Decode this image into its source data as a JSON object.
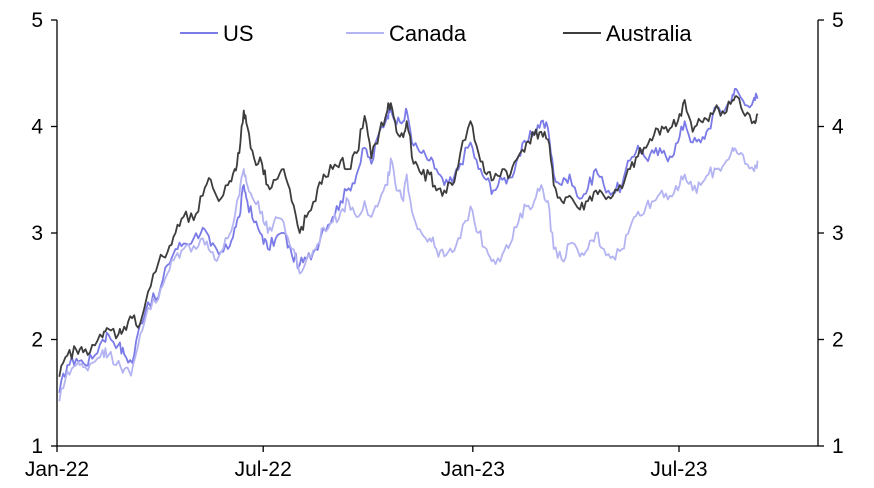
{
  "chart_data": {
    "type": "line",
    "title": "",
    "xlabel": "",
    "ylabel": "",
    "ylim": [
      1,
      5
    ],
    "y_ticks": [
      "1",
      "2",
      "3",
      "4",
      "5"
    ],
    "x_ticks": [
      {
        "label": "Jan-22",
        "date": "2022-01-01"
      },
      {
        "label": "Jul-22",
        "date": "2022-07-01"
      },
      {
        "label": "Jan-23",
        "date": "2023-01-01"
      },
      {
        "label": "Jul-23",
        "date": "2023-07-01"
      }
    ],
    "x_range": [
      "2022-01-01",
      "2023-10-31"
    ],
    "grid": false,
    "right_axis": true,
    "legend_position": "top",
    "series": [
      {
        "name": "US",
        "color": "#7b7be8",
        "points": [
          [
            "2022-01-03",
            1.5
          ],
          [
            "2022-01-10",
            1.76
          ],
          [
            "2022-01-18",
            1.82
          ],
          [
            "2022-01-24",
            1.78
          ],
          [
            "2022-02-01",
            1.82
          ],
          [
            "2022-02-10",
            2.0
          ],
          [
            "2022-02-15",
            2.05
          ],
          [
            "2022-02-24",
            1.95
          ],
          [
            "2022-03-01",
            1.86
          ],
          [
            "2022-03-08",
            1.78
          ],
          [
            "2022-03-15",
            2.15
          ],
          [
            "2022-03-22",
            2.35
          ],
          [
            "2022-03-31",
            2.4
          ],
          [
            "2022-04-08",
            2.7
          ],
          [
            "2022-04-15",
            2.85
          ],
          [
            "2022-04-22",
            2.9
          ],
          [
            "2022-05-01",
            2.95
          ],
          [
            "2022-05-09",
            3.05
          ],
          [
            "2022-05-16",
            2.88
          ],
          [
            "2022-05-23",
            2.8
          ],
          [
            "2022-05-31",
            2.85
          ],
          [
            "2022-06-06",
            3.05
          ],
          [
            "2022-06-10",
            3.15
          ],
          [
            "2022-06-14",
            3.45
          ],
          [
            "2022-06-17",
            3.3
          ],
          [
            "2022-06-23",
            3.1
          ],
          [
            "2022-06-30",
            2.98
          ],
          [
            "2022-07-05",
            2.85
          ],
          [
            "2022-07-12",
            2.95
          ],
          [
            "2022-07-19",
            3.0
          ],
          [
            "2022-07-26",
            2.8
          ],
          [
            "2022-08-02",
            2.7
          ],
          [
            "2022-08-08",
            2.75
          ],
          [
            "2022-08-16",
            2.85
          ],
          [
            "2022-08-23",
            3.05
          ],
          [
            "2022-08-31",
            3.15
          ],
          [
            "2022-09-07",
            3.3
          ],
          [
            "2022-09-14",
            3.42
          ],
          [
            "2022-09-21",
            3.55
          ],
          [
            "2022-09-28",
            3.8
          ],
          [
            "2022-10-04",
            3.65
          ],
          [
            "2022-10-11",
            3.95
          ],
          [
            "2022-10-18",
            4.1
          ],
          [
            "2022-10-21",
            4.22
          ],
          [
            "2022-10-26",
            4.02
          ],
          [
            "2022-11-01",
            4.05
          ],
          [
            "2022-11-04",
            4.15
          ],
          [
            "2022-11-10",
            3.82
          ],
          [
            "2022-11-17",
            3.75
          ],
          [
            "2022-11-24",
            3.68
          ],
          [
            "2022-11-30",
            3.6
          ],
          [
            "2022-12-07",
            3.45
          ],
          [
            "2022-12-14",
            3.48
          ],
          [
            "2022-12-21",
            3.65
          ],
          [
            "2022-12-30",
            3.85
          ],
          [
            "2023-01-06",
            3.6
          ],
          [
            "2023-01-13",
            3.5
          ],
          [
            "2023-01-19",
            3.4
          ],
          [
            "2023-01-27",
            3.5
          ],
          [
            "2023-02-03",
            3.52
          ],
          [
            "2023-02-10",
            3.72
          ],
          [
            "2023-02-17",
            3.85
          ],
          [
            "2023-02-24",
            3.95
          ],
          [
            "2023-03-02",
            4.05
          ],
          [
            "2023-03-08",
            3.98
          ],
          [
            "2023-03-13",
            3.55
          ],
          [
            "2023-03-20",
            3.45
          ],
          [
            "2023-03-27",
            3.55
          ],
          [
            "2023-04-05",
            3.32
          ],
          [
            "2023-04-12",
            3.42
          ],
          [
            "2023-04-19",
            3.6
          ],
          [
            "2023-04-26",
            3.45
          ],
          [
            "2023-05-04",
            3.38
          ],
          [
            "2023-05-12",
            3.45
          ],
          [
            "2023-05-19",
            3.68
          ],
          [
            "2023-05-26",
            3.82
          ],
          [
            "2023-06-02",
            3.7
          ],
          [
            "2023-06-09",
            3.75
          ],
          [
            "2023-06-16",
            3.75
          ],
          [
            "2023-06-23",
            3.72
          ],
          [
            "2023-06-30",
            3.85
          ],
          [
            "2023-07-06",
            4.05
          ],
          [
            "2023-07-13",
            3.85
          ],
          [
            "2023-07-20",
            3.85
          ],
          [
            "2023-07-27",
            3.98
          ],
          [
            "2023-08-03",
            4.18
          ],
          [
            "2023-08-10",
            4.15
          ],
          [
            "2023-08-17",
            4.3
          ],
          [
            "2023-08-21",
            4.34
          ],
          [
            "2023-08-28",
            4.2
          ],
          [
            "2023-09-05",
            4.27
          ],
          [
            "2023-09-08",
            4.26
          ]
        ]
      },
      {
        "name": "Canada",
        "color": "#b4b4f2",
        "points": [
          [
            "2022-01-03",
            1.42
          ],
          [
            "2022-01-10",
            1.7
          ],
          [
            "2022-01-18",
            1.76
          ],
          [
            "2022-01-24",
            1.74
          ],
          [
            "2022-02-01",
            1.78
          ],
          [
            "2022-02-10",
            1.9
          ],
          [
            "2022-02-15",
            1.85
          ],
          [
            "2022-02-24",
            1.8
          ],
          [
            "2022-03-01",
            1.72
          ],
          [
            "2022-03-07",
            1.66
          ],
          [
            "2022-03-15",
            2.05
          ],
          [
            "2022-03-22",
            2.3
          ],
          [
            "2022-03-31",
            2.38
          ],
          [
            "2022-04-08",
            2.62
          ],
          [
            "2022-04-15",
            2.78
          ],
          [
            "2022-04-22",
            2.85
          ],
          [
            "2022-05-01",
            2.88
          ],
          [
            "2022-05-09",
            2.95
          ],
          [
            "2022-05-16",
            2.82
          ],
          [
            "2022-05-23",
            2.78
          ],
          [
            "2022-05-31",
            2.95
          ],
          [
            "2022-06-06",
            3.15
          ],
          [
            "2022-06-10",
            3.35
          ],
          [
            "2022-06-14",
            3.6
          ],
          [
            "2022-06-17",
            3.45
          ],
          [
            "2022-06-23",
            3.3
          ],
          [
            "2022-06-30",
            3.2
          ],
          [
            "2022-07-05",
            3.0
          ],
          [
            "2022-07-12",
            3.15
          ],
          [
            "2022-07-19",
            3.1
          ],
          [
            "2022-07-26",
            2.85
          ],
          [
            "2022-08-02",
            2.62
          ],
          [
            "2022-08-08",
            2.75
          ],
          [
            "2022-08-16",
            2.85
          ],
          [
            "2022-08-23",
            3.05
          ],
          [
            "2022-08-31",
            3.1
          ],
          [
            "2022-09-07",
            3.2
          ],
          [
            "2022-09-14",
            3.3
          ],
          [
            "2022-09-21",
            3.15
          ],
          [
            "2022-09-28",
            3.3
          ],
          [
            "2022-10-04",
            3.15
          ],
          [
            "2022-10-11",
            3.3
          ],
          [
            "2022-10-18",
            3.45
          ],
          [
            "2022-10-21",
            3.7
          ],
          [
            "2022-10-26",
            3.4
          ],
          [
            "2022-11-01",
            3.3
          ],
          [
            "2022-11-04",
            3.55
          ],
          [
            "2022-11-10",
            3.15
          ],
          [
            "2022-11-17",
            3.0
          ],
          [
            "2022-11-24",
            2.95
          ],
          [
            "2022-11-30",
            2.85
          ],
          [
            "2022-12-07",
            2.78
          ],
          [
            "2022-12-14",
            2.82
          ],
          [
            "2022-12-21",
            2.95
          ],
          [
            "2022-12-30",
            3.25
          ],
          [
            "2023-01-06",
            3.0
          ],
          [
            "2023-01-13",
            2.85
          ],
          [
            "2023-01-19",
            2.75
          ],
          [
            "2023-01-27",
            2.8
          ],
          [
            "2023-02-03",
            2.9
          ],
          [
            "2023-02-10",
            3.1
          ],
          [
            "2023-02-17",
            3.25
          ],
          [
            "2023-02-24",
            3.3
          ],
          [
            "2023-03-02",
            3.45
          ],
          [
            "2023-03-08",
            3.3
          ],
          [
            "2023-03-13",
            2.85
          ],
          [
            "2023-03-20",
            2.75
          ],
          [
            "2023-03-27",
            2.9
          ],
          [
            "2023-04-05",
            2.78
          ],
          [
            "2023-04-12",
            2.85
          ],
          [
            "2023-04-19",
            3.0
          ],
          [
            "2023-04-26",
            2.85
          ],
          [
            "2023-05-04",
            2.78
          ],
          [
            "2023-05-12",
            2.85
          ],
          [
            "2023-05-19",
            3.05
          ],
          [
            "2023-05-26",
            3.2
          ],
          [
            "2023-06-02",
            3.25
          ],
          [
            "2023-06-09",
            3.3
          ],
          [
            "2023-06-16",
            3.4
          ],
          [
            "2023-06-23",
            3.35
          ],
          [
            "2023-06-30",
            3.4
          ],
          [
            "2023-07-06",
            3.55
          ],
          [
            "2023-07-13",
            3.4
          ],
          [
            "2023-07-20",
            3.45
          ],
          [
            "2023-07-27",
            3.55
          ],
          [
            "2023-08-03",
            3.6
          ],
          [
            "2023-08-10",
            3.65
          ],
          [
            "2023-08-17",
            3.8
          ],
          [
            "2023-08-21",
            3.75
          ],
          [
            "2023-08-28",
            3.65
          ],
          [
            "2023-09-05",
            3.58
          ],
          [
            "2023-09-08",
            3.68
          ]
        ]
      },
      {
        "name": "Australia",
        "color": "#3d3d3d",
        "points": [
          [
            "2022-01-03",
            1.65
          ],
          [
            "2022-01-10",
            1.85
          ],
          [
            "2022-01-18",
            1.9
          ],
          [
            "2022-01-24",
            1.88
          ],
          [
            "2022-02-01",
            1.95
          ],
          [
            "2022-02-10",
            2.02
          ],
          [
            "2022-02-15",
            2.1
          ],
          [
            "2022-02-24",
            2.05
          ],
          [
            "2022-03-01",
            2.12
          ],
          [
            "2022-03-08",
            2.2
          ],
          [
            "2022-03-15",
            2.15
          ],
          [
            "2022-03-22",
            2.45
          ],
          [
            "2022-03-31",
            2.72
          ],
          [
            "2022-04-08",
            2.82
          ],
          [
            "2022-04-15",
            3.0
          ],
          [
            "2022-04-22",
            3.15
          ],
          [
            "2022-05-01",
            3.12
          ],
          [
            "2022-05-09",
            3.35
          ],
          [
            "2022-05-16",
            3.5
          ],
          [
            "2022-05-23",
            3.3
          ],
          [
            "2022-05-31",
            3.45
          ],
          [
            "2022-06-06",
            3.6
          ],
          [
            "2022-06-10",
            3.75
          ],
          [
            "2022-06-14",
            4.15
          ],
          [
            "2022-06-17",
            4.0
          ],
          [
            "2022-06-23",
            3.7
          ],
          [
            "2022-06-30",
            3.65
          ],
          [
            "2022-07-05",
            3.45
          ],
          [
            "2022-07-12",
            3.5
          ],
          [
            "2022-07-19",
            3.6
          ],
          [
            "2022-07-26",
            3.3
          ],
          [
            "2022-08-02",
            3.0
          ],
          [
            "2022-08-08",
            3.15
          ],
          [
            "2022-08-16",
            3.3
          ],
          [
            "2022-08-23",
            3.55
          ],
          [
            "2022-08-31",
            3.6
          ],
          [
            "2022-09-07",
            3.68
          ],
          [
            "2022-09-14",
            3.6
          ],
          [
            "2022-09-21",
            3.75
          ],
          [
            "2022-09-28",
            4.1
          ],
          [
            "2022-10-04",
            3.7
          ],
          [
            "2022-10-11",
            3.95
          ],
          [
            "2022-10-18",
            4.15
          ],
          [
            "2022-10-21",
            4.22
          ],
          [
            "2022-10-26",
            3.95
          ],
          [
            "2022-11-01",
            3.9
          ],
          [
            "2022-11-04",
            4.05
          ],
          [
            "2022-11-10",
            3.65
          ],
          [
            "2022-11-17",
            3.55
          ],
          [
            "2022-11-24",
            3.55
          ],
          [
            "2022-11-30",
            3.4
          ],
          [
            "2022-12-07",
            3.4
          ],
          [
            "2022-12-14",
            3.45
          ],
          [
            "2022-12-21",
            3.75
          ],
          [
            "2022-12-30",
            4.05
          ],
          [
            "2023-01-06",
            3.75
          ],
          [
            "2023-01-13",
            3.55
          ],
          [
            "2023-01-19",
            3.5
          ],
          [
            "2023-01-27",
            3.6
          ],
          [
            "2023-02-03",
            3.55
          ],
          [
            "2023-02-10",
            3.72
          ],
          [
            "2023-02-17",
            3.85
          ],
          [
            "2023-02-24",
            3.92
          ],
          [
            "2023-03-02",
            3.95
          ],
          [
            "2023-03-08",
            3.88
          ],
          [
            "2023-03-13",
            3.45
          ],
          [
            "2023-03-20",
            3.3
          ],
          [
            "2023-03-27",
            3.35
          ],
          [
            "2023-04-05",
            3.22
          ],
          [
            "2023-04-12",
            3.3
          ],
          [
            "2023-04-19",
            3.4
          ],
          [
            "2023-04-26",
            3.35
          ],
          [
            "2023-05-04",
            3.35
          ],
          [
            "2023-05-12",
            3.42
          ],
          [
            "2023-05-19",
            3.6
          ],
          [
            "2023-05-26",
            3.72
          ],
          [
            "2023-06-02",
            3.8
          ],
          [
            "2023-06-09",
            3.92
          ],
          [
            "2023-06-16",
            4.0
          ],
          [
            "2023-06-23",
            3.98
          ],
          [
            "2023-06-30",
            4.05
          ],
          [
            "2023-07-06",
            4.25
          ],
          [
            "2023-07-13",
            3.95
          ],
          [
            "2023-07-20",
            4.05
          ],
          [
            "2023-07-27",
            4.05
          ],
          [
            "2023-08-03",
            4.2
          ],
          [
            "2023-08-10",
            4.12
          ],
          [
            "2023-08-17",
            4.25
          ],
          [
            "2023-08-21",
            4.28
          ],
          [
            "2023-08-28",
            4.1
          ],
          [
            "2023-09-05",
            4.05
          ],
          [
            "2023-09-08",
            4.12
          ]
        ]
      }
    ]
  }
}
